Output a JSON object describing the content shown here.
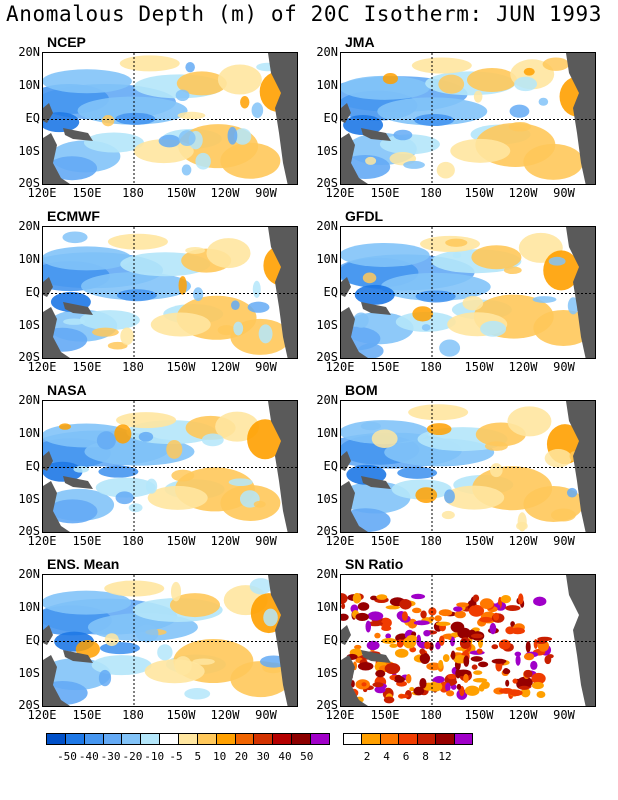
{
  "title": "Anomalous Depth (m) of 20C Isotherm: JUN 1993",
  "lat_labels": [
    "20N",
    "10N",
    "EQ",
    "10S",
    "20S"
  ],
  "lon_labels": [
    "120E",
    "150E",
    "180",
    "150W",
    "120W",
    "90W"
  ],
  "panels": [
    {
      "name": "NCEP",
      "type": "anomaly"
    },
    {
      "name": "JMA",
      "type": "anomaly"
    },
    {
      "name": "ECMWF",
      "type": "anomaly"
    },
    {
      "name": "GFDL",
      "type": "anomaly"
    },
    {
      "name": "NASA",
      "type": "anomaly"
    },
    {
      "name": "BOM",
      "type": "anomaly"
    },
    {
      "name": "ENS. Mean",
      "type": "anomaly"
    },
    {
      "name": "SN Ratio",
      "type": "ratio"
    }
  ],
  "anomaly_colorbar": {
    "colors": [
      "#0050c8",
      "#1e78e6",
      "#4696f0",
      "#64aaf5",
      "#82c3f8",
      "#b4e6fa",
      "#ffffff",
      "#ffe6a0",
      "#ffc85a",
      "#ffa000",
      "#f06400",
      "#d23200",
      "#b40000",
      "#8c0000",
      "#a000c8"
    ],
    "labels": [
      "-50",
      "-40",
      "-30",
      "-20",
      "-10",
      "-5",
      "5",
      "10",
      "20",
      "30",
      "40",
      "50"
    ]
  },
  "ratio_colorbar": {
    "colors": [
      "#ffffff",
      "#ffa000",
      "#ff7800",
      "#f03c00",
      "#c81e00",
      "#960000",
      "#a000c8"
    ],
    "labels": [
      "2",
      "4",
      "6",
      "8",
      "12"
    ]
  }
}
